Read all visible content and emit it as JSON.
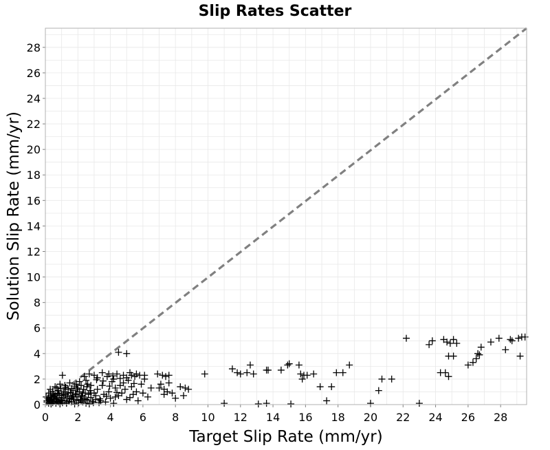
{
  "chart_data": {
    "type": "scatter",
    "title": "Slip Rates Scatter",
    "xlabel": "Target Slip Rate (mm/yr)",
    "ylabel": "Solution Slip Rate (mm/yr)",
    "xlim": [
      0,
      29.6
    ],
    "ylim": [
      0,
      29.5
    ],
    "xticks": [
      "0",
      "2",
      "4",
      "6",
      "8",
      "10",
      "12",
      "14",
      "16",
      "18",
      "20",
      "22",
      "24",
      "26",
      "28"
    ],
    "yticks": [
      "0",
      "2",
      "4",
      "6",
      "8",
      "10",
      "12",
      "14",
      "16",
      "18",
      "20",
      "22",
      "24",
      "26",
      "28"
    ],
    "grid": true,
    "marker": "plus",
    "colors": {
      "points": "#000000",
      "reference_line": "#808080",
      "grid": "#e8e8e8",
      "frame": "#b0b0b0"
    },
    "reference_line": {
      "style": "dashed",
      "points": [
        [
          0,
          0
        ],
        [
          29.6,
          29.5
        ]
      ]
    },
    "series": [
      {
        "points": [
          [
            0.1,
            0.2
          ],
          [
            0.15,
            0.5
          ],
          [
            0.2,
            0.1
          ],
          [
            0.25,
            0.35
          ],
          [
            0.3,
            0.6
          ],
          [
            0.35,
            0.05
          ],
          [
            0.4,
            0.3
          ],
          [
            0.45,
            0.15
          ],
          [
            0.5,
            0.45
          ],
          [
            0.55,
            0.25
          ],
          [
            0.6,
            0.7
          ],
          [
            0.65,
            0.1
          ],
          [
            0.7,
            0.4
          ],
          [
            0.75,
            0.9
          ],
          [
            0.8,
            0.2
          ],
          [
            0.85,
            0.55
          ],
          [
            0.9,
            0.05
          ],
          [
            0.95,
            0.35
          ],
          [
            1.0,
            0.75
          ],
          [
            1.05,
            0.15
          ],
          [
            1.1,
            0.5
          ],
          [
            1.15,
            1.0
          ],
          [
            1.2,
            0.3
          ],
          [
            1.25,
            0.8
          ],
          [
            1.3,
            0.1
          ],
          [
            1.35,
            0.6
          ],
          [
            1.4,
            1.2
          ],
          [
            1.45,
            0.25
          ],
          [
            1.5,
            0.45
          ],
          [
            1.55,
            0.95
          ],
          [
            1.6,
            0.2
          ],
          [
            1.65,
            0.7
          ],
          [
            1.7,
            1.1
          ],
          [
            1.75,
            0.4
          ],
          [
            1.8,
            0.05
          ],
          [
            1.85,
            0.85
          ],
          [
            1.9,
            0.3
          ],
          [
            1.95,
            1.3
          ],
          [
            2.0,
            0.6
          ],
          [
            2.05,
            0.15
          ],
          [
            2.1,
            1.0
          ],
          [
            2.15,
            0.4
          ],
          [
            2.2,
            1.5
          ],
          [
            2.25,
            0.7
          ],
          [
            2.3,
            0.2
          ],
          [
            2.35,
            1.2
          ],
          [
            2.4,
            0.5
          ],
          [
            2.45,
            0.9
          ],
          [
            2.5,
            0.1
          ],
          [
            2.55,
            1.4
          ],
          [
            2.6,
            0.35
          ],
          [
            2.65,
            0.8
          ],
          [
            2.7,
            0.05
          ],
          [
            2.75,
            1.1
          ],
          [
            2.8,
            0.55
          ],
          [
            2.9,
            0.25
          ],
          [
            3.0,
            0.9
          ],
          [
            3.1,
            0.4
          ],
          [
            3.2,
            1.2
          ],
          [
            3.3,
            0.15
          ],
          [
            0.3,
            1.2
          ],
          [
            0.6,
            1.4
          ],
          [
            0.9,
            1.6
          ],
          [
            1.2,
            1.5
          ],
          [
            1.5,
            1.7
          ],
          [
            1.8,
            1.45
          ],
          [
            2.1,
            1.8
          ],
          [
            1.05,
            2.3
          ],
          [
            0.5,
            0.8
          ],
          [
            0.8,
            1.1
          ],
          [
            1.1,
            0.7
          ],
          [
            1.4,
            0.9
          ],
          [
            1.7,
            0.6
          ],
          [
            2.0,
            1.2
          ],
          [
            2.3,
            0.9
          ],
          [
            2.6,
            1.6
          ],
          [
            0.2,
            0.9
          ],
          [
            0.45,
            1.05
          ],
          [
            0.7,
            1.3
          ],
          [
            0.95,
            1.25
          ],
          [
            1.25,
            1.35
          ],
          [
            1.6,
            1.25
          ],
          [
            1.9,
            1.6
          ],
          [
            2.2,
            0.3
          ],
          [
            2.5,
            1.9
          ],
          [
            2.8,
            1.5
          ],
          [
            3.0,
            2.3
          ],
          [
            3.2,
            2.1
          ],
          [
            2.7,
            2.4
          ],
          [
            2.4,
            2.2
          ],
          [
            1.0,
            0.3
          ],
          [
            1.3,
            0.15
          ],
          [
            1.6,
            0.5
          ],
          [
            1.9,
            0.8
          ],
          [
            2.2,
            0.6
          ],
          [
            2.5,
            0.4
          ],
          [
            2.8,
            0.9
          ],
          [
            3.1,
            0.7
          ],
          [
            3.4,
            0.3
          ],
          [
            3.5,
            1.5
          ],
          [
            3.6,
            0.8
          ],
          [
            3.7,
            0.2
          ],
          [
            3.8,
            2.2
          ],
          [
            3.9,
            1.0
          ],
          [
            4.0,
            0.5
          ],
          [
            4.1,
            1.8
          ],
          [
            4.2,
            0.1
          ],
          [
            4.3,
            1.3
          ],
          [
            4.4,
            2.4
          ],
          [
            4.5,
            0.7
          ],
          [
            3.5,
            2.5
          ],
          [
            3.9,
            2.4
          ],
          [
            4.2,
            2.0
          ],
          [
            4.3,
            0.6
          ],
          [
            4.6,
            1.5
          ],
          [
            4.7,
            0.9
          ],
          [
            4.8,
            2.3
          ],
          [
            4.9,
            1.2
          ],
          [
            5.0,
            0.4
          ],
          [
            5.1,
            1.9
          ],
          [
            4.5,
            4.1
          ],
          [
            5.0,
            4.0
          ],
          [
            5.2,
            2.5
          ],
          [
            5.3,
            1.4
          ],
          [
            5.4,
            0.8
          ],
          [
            5.5,
            2.2
          ],
          [
            5.6,
            1.0
          ],
          [
            5.7,
            0.3
          ],
          [
            5.8,
            2.3
          ],
          [
            5.9,
            1.6
          ],
          [
            6.0,
            0.9
          ],
          [
            6.1,
            2.0
          ],
          [
            6.3,
            0.6
          ],
          [
            6.5,
            1.3
          ],
          [
            5.0,
            2.1
          ],
          [
            4.8,
            1.7
          ],
          [
            5.3,
            2.3
          ],
          [
            5.6,
            2.4
          ],
          [
            6.1,
            2.3
          ],
          [
            4.4,
            0.95
          ],
          [
            4.6,
            2.05
          ],
          [
            5.2,
            0.55
          ],
          [
            5.45,
            1.65
          ],
          [
            4.15,
            2.25
          ],
          [
            3.95,
            1.45
          ],
          [
            3.75,
            0.65
          ],
          [
            3.55,
            1.85
          ],
          [
            3.35,
            0.45
          ],
          [
            3.15,
            1.95
          ],
          [
            2.95,
            0.15
          ],
          [
            6.9,
            2.4
          ],
          [
            7.2,
            2.3
          ],
          [
            7.4,
            2.2
          ],
          [
            7.6,
            2.3
          ],
          [
            7.3,
            1.2
          ],
          [
            7.1,
            1.6
          ],
          [
            7.5,
            1.0
          ],
          [
            7.8,
            0.9
          ],
          [
            8.3,
            1.4
          ],
          [
            8.6,
            1.3
          ],
          [
            8.8,
            1.2
          ],
          [
            8.5,
            0.7
          ],
          [
            7.0,
            1.3
          ],
          [
            7.6,
            1.7
          ],
          [
            8.0,
            0.5
          ],
          [
            7.3,
            0.8
          ],
          [
            9.8,
            2.4
          ],
          [
            11.0,
            0.1
          ],
          [
            11.5,
            2.8
          ],
          [
            11.8,
            2.5
          ],
          [
            12.0,
            2.4
          ],
          [
            12.4,
            2.5
          ],
          [
            12.6,
            3.1
          ],
          [
            12.8,
            2.4
          ],
          [
            13.1,
            0.05
          ],
          [
            13.6,
            2.7
          ],
          [
            13.7,
            2.7
          ],
          [
            13.6,
            0.1
          ],
          [
            14.5,
            2.7
          ],
          [
            14.9,
            3.1
          ],
          [
            15.0,
            3.2
          ],
          [
            15.1,
            0.05
          ],
          [
            15.6,
            3.1
          ],
          [
            15.7,
            2.4
          ],
          [
            15.8,
            2.0
          ],
          [
            15.9,
            2.3
          ],
          [
            16.1,
            2.3
          ],
          [
            16.5,
            2.4
          ],
          [
            16.9,
            1.4
          ],
          [
            17.3,
            0.3
          ],
          [
            17.6,
            1.4
          ],
          [
            17.9,
            2.5
          ],
          [
            18.3,
            2.5
          ],
          [
            18.7,
            3.1
          ],
          [
            20.0,
            0.1
          ],
          [
            20.5,
            1.1
          ],
          [
            20.7,
            2.0
          ],
          [
            21.3,
            2.0
          ],
          [
            22.2,
            5.2
          ],
          [
            23.0,
            0.1
          ],
          [
            23.6,
            4.7
          ],
          [
            23.8,
            5.0
          ],
          [
            24.3,
            2.5
          ],
          [
            24.5,
            5.1
          ],
          [
            24.6,
            2.5
          ],
          [
            24.7,
            4.9
          ],
          [
            24.8,
            2.2
          ],
          [
            24.8,
            3.8
          ],
          [
            24.9,
            4.8
          ],
          [
            25.1,
            5.1
          ],
          [
            25.1,
            3.8
          ],
          [
            25.3,
            4.8
          ],
          [
            26.0,
            3.1
          ],
          [
            26.3,
            3.3
          ],
          [
            26.5,
            3.6
          ],
          [
            26.6,
            4.0
          ],
          [
            26.7,
            3.9
          ],
          [
            26.8,
            4.5
          ],
          [
            27.4,
            4.9
          ],
          [
            27.9,
            5.2
          ],
          [
            28.3,
            4.3
          ],
          [
            28.6,
            5.1
          ],
          [
            28.7,
            5.0
          ],
          [
            29.1,
            5.2
          ],
          [
            29.2,
            3.8
          ],
          [
            29.3,
            5.3
          ],
          [
            29.5,
            5.3
          ],
          [
            0.05,
            0.6
          ],
          [
            0.1,
            0.3
          ],
          [
            0.2,
            0.5
          ],
          [
            0.3,
            0.4
          ],
          [
            0.35,
            0.75
          ],
          [
            0.4,
            0.55
          ],
          [
            0.55,
            0.65
          ],
          [
            0.65,
            0.45
          ],
          [
            0.75,
            0.25
          ],
          [
            0.85,
            0.85
          ]
        ]
      }
    ]
  }
}
